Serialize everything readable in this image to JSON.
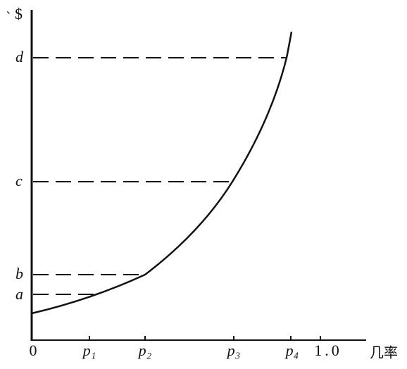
{
  "y_axis": {
    "label": "$",
    "ticks": [
      "d",
      "c",
      "b",
      "a"
    ]
  },
  "x_axis": {
    "label": "几率",
    "ticks": [
      "0",
      "p₁",
      "p₂",
      "p₃",
      "p₄",
      "1.0"
    ]
  }
}
